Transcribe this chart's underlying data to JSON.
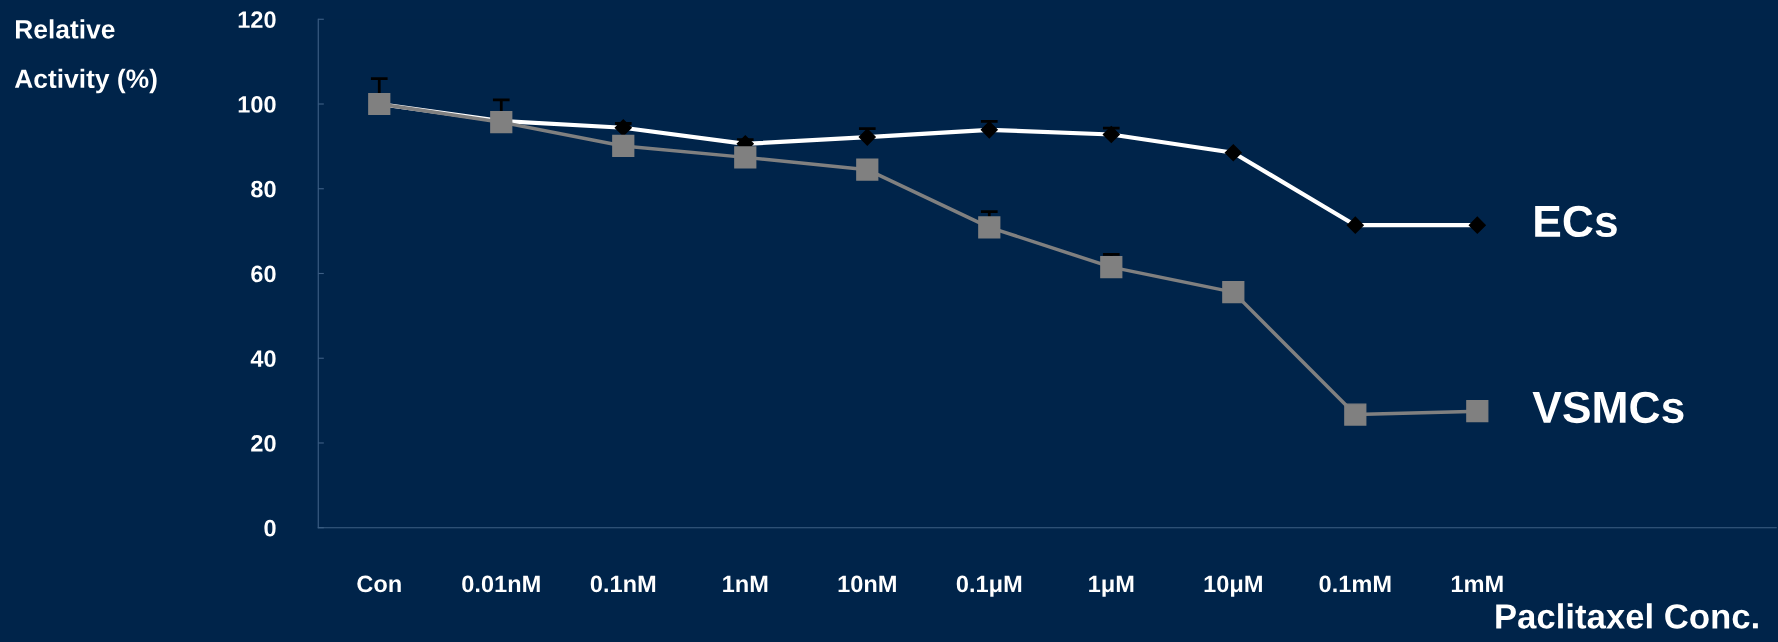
{
  "chart_data": {
    "type": "line",
    "xlabel": "Paclitaxel Conc.",
    "ylabel": "Relative\nActivity (%)",
    "categories": [
      "Con",
      "0.01nM",
      "0.1nM",
      "1nM",
      "10nM",
      "0.1μM",
      "1μM",
      "10μM",
      "0.1mM",
      "1mM"
    ],
    "ylim": [
      0,
      120
    ],
    "yticks": [
      0,
      20,
      40,
      60,
      80,
      100,
      120
    ],
    "grid": false,
    "legend": false,
    "series": [
      {
        "name": "ECs",
        "color": "#ffffff",
        "marker": "diamond",
        "values": [
          100,
          96,
          94.4,
          90.6,
          92.2,
          93.9,
          92.8,
          88.5,
          71.4,
          71.4
        ],
        "errors": [
          [
            100,
            106
          ],
          [
            96,
            101
          ],
          [
            94.4,
            95.4
          ],
          [
            90.6,
            91.6
          ],
          [
            92.2,
            94.2
          ],
          [
            93.9,
            95.9
          ],
          [
            92.8,
            94.3
          ],
          null,
          null,
          null
        ]
      },
      {
        "name": "VSMCs",
        "color": "#808080",
        "marker": "square",
        "values": [
          100,
          95.7,
          90.1,
          87.4,
          84.5,
          70.9,
          61.5,
          55.6,
          26.7,
          27.5
        ],
        "errors": [
          null,
          null,
          null,
          null,
          null,
          [
            70.9,
            74.6
          ],
          [
            61.5,
            64.5
          ],
          null,
          null,
          null
        ]
      }
    ]
  }
}
